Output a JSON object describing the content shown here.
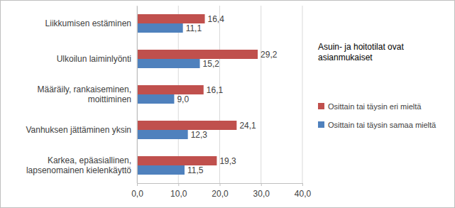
{
  "chart_data": {
    "type": "bar",
    "orientation": "horizontal",
    "legend_title": "Asuin- ja hoitotilat ovat asianmukaiset",
    "categories": [
      "Liikkumisen estäminen",
      "Ulkoilun laiminlyönti",
      "Määräily, rankaiseminen, moittiminen",
      "Vanhuksen jättäminen yksin",
      "Karkea, epäasiallinen, lapsenomainen kielenkäyttö"
    ],
    "series": [
      {
        "name": "Osittain tai täysin eri mieltä",
        "color": "#c0504d",
        "values": [
          16.4,
          29.2,
          16.1,
          24.1,
          19.3
        ],
        "value_labels": [
          "16,4",
          "29,2",
          "16,1",
          "24,1",
          "19,3"
        ]
      },
      {
        "name": "Osittain tai täysin samaa mieltä",
        "color": "#4f81bd",
        "values": [
          11.1,
          15.2,
          9.0,
          12.3,
          11.5
        ],
        "value_labels": [
          "11,1",
          "15,2",
          "9,0",
          "12,3",
          "11,5"
        ]
      }
    ],
    "xlim": [
      0,
      40
    ],
    "xticks": [
      {
        "value": 0,
        "label": "0,0"
      },
      {
        "value": 10,
        "label": "10,0"
      },
      {
        "value": 20,
        "label": "20,0"
      },
      {
        "value": 30,
        "label": "30,0"
      },
      {
        "value": 40,
        "label": "40,0"
      }
    ],
    "grid": true,
    "data_labels": true,
    "legend": "right"
  }
}
